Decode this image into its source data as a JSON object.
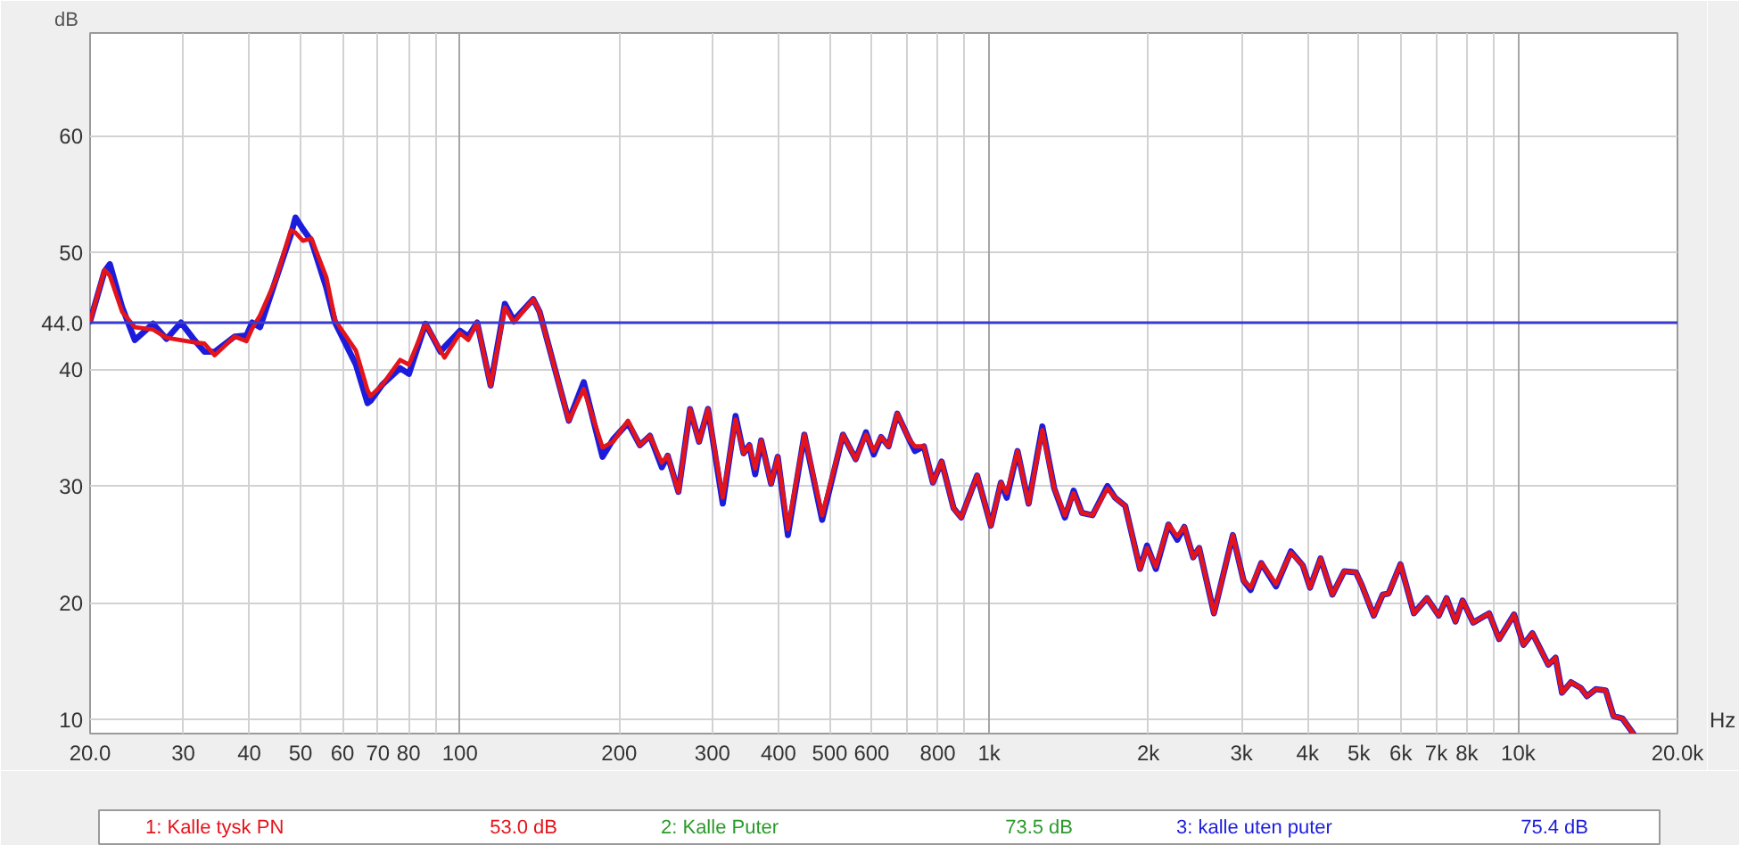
{
  "chart_data": {
    "type": "line",
    "xlabel": "Hz",
    "ylabel": "dB",
    "log": "x",
    "grid": true,
    "legend": "bottom",
    "xlim": [
      20,
      20000
    ],
    "ylim": [
      8.8,
      68.8
    ],
    "xticks": [
      {
        "value": 20,
        "label": "20.0"
      },
      30,
      40,
      50,
      60,
      70,
      80,
      {
        "value": 90,
        "label": null
      },
      100,
      200,
      300,
      400,
      500,
      600,
      {
        "value": 700,
        "label": null
      },
      800,
      {
        "value": 900,
        "label": null
      },
      {
        "value": 1000,
        "label": "1k"
      },
      {
        "value": 2000,
        "label": "2k"
      },
      {
        "value": 3000,
        "label": "3k"
      },
      {
        "value": 4000,
        "label": "4k"
      },
      {
        "value": 5000,
        "label": "5k"
      },
      {
        "value": 6000,
        "label": "6k"
      },
      {
        "value": 7000,
        "label": "7k"
      },
      {
        "value": 8000,
        "label": "8k"
      },
      {
        "value": 9000,
        "label": null
      },
      {
        "value": 10000,
        "label": "10k"
      },
      {
        "value": 20000,
        "label": "20.0k"
      }
    ],
    "yticks": [
      10,
      20,
      30,
      40,
      50,
      60
    ],
    "ref_lines": [
      {
        "axis": "y",
        "value": 44,
        "label": "44.0",
        "color": "#3a3ad0"
      }
    ],
    "annotations": [
      "53.0 dB",
      "73.5 dB",
      "75.4 dB"
    ],
    "x": [
      20,
      21.3,
      21.8,
      23,
      24.3,
      26.3,
      27.9,
      29.7,
      31.5,
      32.9,
      34.4,
      37.5,
      39.5,
      40.5,
      41.9,
      44.9,
      47.9,
      48.9,
      50.5,
      52.4,
      55.9,
      58.1,
      63.6,
      66.9,
      67.8,
      71.4,
      77.1,
      80.1,
      86.1,
      91.9,
      93.5,
      100,
      103.7,
      107.8,
      114.3,
      121.6,
      126.4,
      137.6,
      141.5,
      160.6,
      171.4,
      186,
      194.8,
      207.8,
      218.8,
      228.6,
      240.8,
      247,
      258.8,
      272.3,
      283.1,
      294.3,
      313.9,
      331.9,
      343.6,
      352.4,
      361.4,
      371,
      387.3,
      398.7,
      416.7,
      447.7,
      483.7,
      529.5,
      559.8,
      585.4,
      605.4,
      625.2,
      645.7,
      670.7,
      706.3,
      724.4,
      753.2,
      783.2,
      813.7,
      857,
      885.9,
      949.4,
      1008,
      1053,
      1080,
      1132,
      1188,
      1261,
      1328,
      1391,
      1445,
      1498,
      1569,
      1674,
      1731,
      1809,
      1929,
      1989,
      2067,
      2183,
      2268,
      2339,
      2431,
      2495,
      2661,
      2889,
      3027,
      3122,
      3269,
      3486,
      3720,
      3917,
      4042,
      4232,
      4455,
      4689,
      4937,
      5066,
      5334,
      5546,
      5689,
      5992,
      6353,
      6725,
      7079,
      7322,
      7613,
      7852,
      8222,
      8810,
      9204,
      9822,
      10233,
      10637,
      11400,
      11765,
      12102,
      12580,
      13139,
      13485,
      14016,
      14637,
      15137,
      15740,
      16500
    ],
    "series": [
      {
        "name": "1: Kalle tysk PN",
        "color": "#e4141b",
        "values": [
          44.1,
          48.5,
          48.0,
          44.9,
          43.6,
          43.4,
          42.7,
          42.5,
          42.3,
          42.2,
          41.2,
          42.8,
          42.4,
          43.5,
          44.6,
          47.7,
          51.9,
          51.7,
          51.0,
          51.2,
          47.9,
          44.2,
          41.6,
          38.2,
          37.7,
          38.7,
          40.8,
          40.4,
          43.9,
          41.6,
          41.0,
          43.1,
          42.5,
          44.0,
          38.6,
          45.3,
          44.0,
          46.0,
          44.9,
          35.6,
          38.3,
          33.3,
          33.8,
          35.6,
          33.5,
          34.3,
          32.0,
          32.6,
          29.5,
          36.6,
          33.8,
          36.6,
          29.0,
          35.7,
          32.8,
          33.5,
          31.5,
          33.9,
          30.2,
          32.5,
          26.3,
          34.4,
          27.5,
          34.4,
          32.3,
          34.4,
          33.0,
          34.2,
          33.4,
          36.2,
          34.0,
          33.4,
          33.4,
          30.3,
          32.1,
          28.1,
          27.3,
          30.9,
          26.6,
          30.3,
          29.4,
          33.0,
          28.5,
          34.8,
          29.8,
          27.5,
          29.4,
          27.7,
          27.5,
          29.8,
          29.0,
          28.3,
          22.9,
          24.7,
          23.1,
          26.7,
          25.7,
          26.5,
          23.9,
          24.7,
          19.1,
          25.8,
          21.9,
          21.3,
          23.4,
          21.6,
          24.3,
          23.2,
          21.3,
          23.8,
          20.7,
          22.7,
          22.6,
          21.5,
          18.9,
          20.7,
          20.8,
          23.3,
          19.1,
          20.4,
          18.9,
          20.4,
          18.4,
          20.2,
          18.3,
          19.1,
          16.9,
          19.0,
          16.4,
          17.4,
          14.7,
          15.3,
          12.3,
          13.2,
          12.7,
          12.0,
          12.6,
          12.5,
          10.3,
          10.1,
          8.8
        ]
      },
      {
        "name": "2: Kalle Puter",
        "color": "#2a9a2a",
        "values": [
          null,
          null,
          null,
          null,
          null,
          null,
          null,
          null,
          null,
          null,
          null,
          null,
          null,
          null,
          null,
          null,
          null,
          null,
          null,
          null,
          null,
          null,
          null,
          null,
          null,
          null,
          null,
          null,
          null,
          null,
          null,
          null,
          null,
          null,
          null,
          null,
          null,
          null,
          null,
          null,
          null,
          null,
          null,
          null,
          null,
          null,
          null,
          null,
          null,
          null,
          null,
          null,
          null,
          null,
          null,
          null,
          null,
          null,
          null,
          null,
          null,
          null,
          null,
          null,
          null,
          null,
          null,
          null,
          null,
          null,
          null,
          null,
          null,
          null,
          null,
          null,
          null,
          null,
          null,
          null,
          null,
          null,
          null,
          null,
          null,
          null,
          null,
          null,
          null,
          null,
          null,
          null,
          null,
          null,
          null,
          null,
          null,
          null,
          null,
          null,
          null,
          null,
          null,
          null,
          null,
          null,
          null,
          null,
          null,
          null,
          null,
          null,
          null,
          null,
          null,
          null,
          null,
          null,
          null,
          null,
          null,
          null,
          null,
          null,
          null,
          null,
          null,
          null,
          null,
          null,
          null,
          null,
          null,
          null,
          null,
          null,
          null,
          null,
          null,
          null,
          null
        ]
      },
      {
        "name": "3: kalle uten puter",
        "color": "#1c1cdc",
        "values": [
          44.1,
          48.4,
          49.0,
          45.3,
          42.5,
          43.9,
          42.6,
          44.0,
          42.5,
          41.5,
          41.5,
          42.8,
          42.9,
          44.0,
          43.6,
          47.7,
          51.5,
          53.0,
          52.0,
          51.0,
          47.0,
          44.0,
          40.4,
          37.1,
          37.3,
          38.7,
          40.1,
          39.6,
          43.9,
          41.5,
          41.9,
          43.3,
          42.8,
          44.0,
          38.6,
          45.6,
          44.2,
          46.0,
          44.9,
          35.6,
          38.9,
          32.5,
          34.0,
          35.4,
          33.5,
          34.3,
          31.6,
          32.6,
          29.5,
          36.6,
          33.8,
          36.6,
          28.5,
          36.0,
          32.8,
          33.5,
          31.0,
          33.9,
          30.2,
          32.5,
          25.8,
          34.4,
          27.1,
          34.4,
          32.3,
          34.6,
          32.7,
          34.2,
          33.4,
          36.2,
          34.0,
          33.0,
          33.4,
          30.3,
          32.1,
          28.1,
          27.3,
          30.9,
          26.6,
          30.3,
          29.0,
          33.0,
          28.5,
          35.1,
          29.8,
          27.3,
          29.6,
          27.7,
          27.5,
          30.0,
          29.0,
          28.3,
          22.9,
          24.9,
          22.9,
          26.7,
          25.4,
          26.5,
          23.9,
          24.7,
          19.1,
          25.8,
          21.9,
          21.1,
          23.4,
          21.4,
          24.4,
          23.2,
          21.3,
          23.8,
          20.7,
          22.7,
          22.6,
          21.5,
          18.9,
          20.7,
          20.8,
          23.3,
          19.1,
          20.4,
          18.9,
          20.4,
          18.4,
          20.2,
          18.3,
          19.1,
          16.9,
          19.0,
          16.4,
          17.4,
          14.7,
          15.3,
          12.3,
          13.2,
          12.7,
          12.0,
          12.6,
          12.5,
          10.3,
          10.1,
          8.8
        ]
      }
    ]
  }
}
